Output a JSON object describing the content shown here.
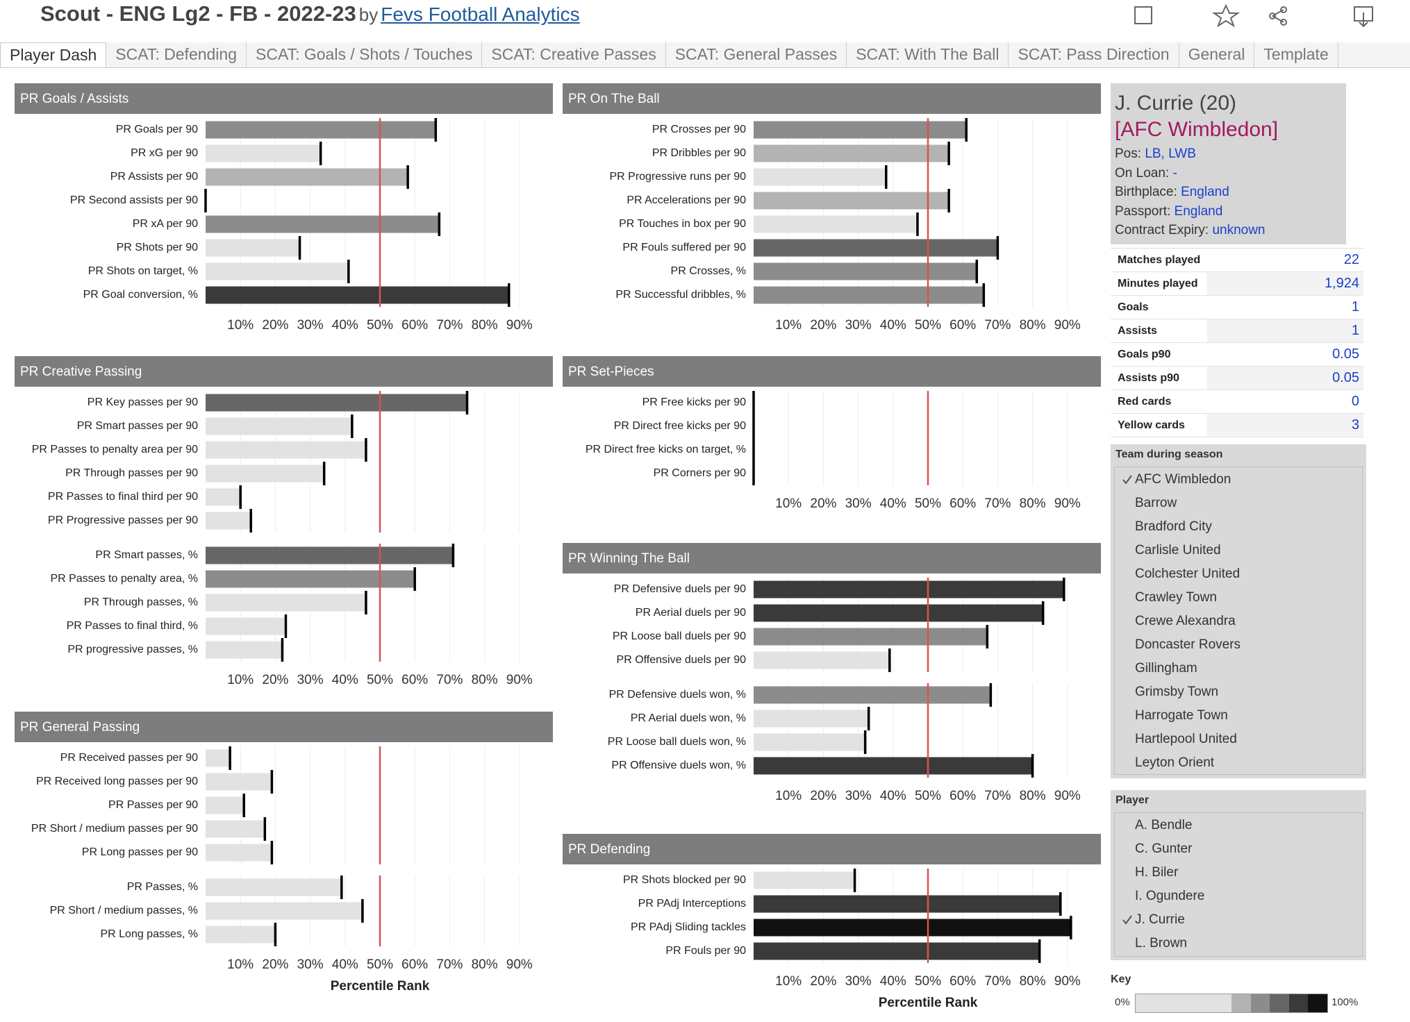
{
  "header": {
    "title": "Scout - ENG Lg2 - FB - 2022-23",
    "by": "by",
    "author": "Fevs Football Analytics"
  },
  "tabs": [
    {
      "label": "Player Dash",
      "active": true
    },
    {
      "label": "SCAT: Defending"
    },
    {
      "label": "SCAT: Goals / Shots / Touches"
    },
    {
      "label": "SCAT: Creative Passes"
    },
    {
      "label": "SCAT: General Passes"
    },
    {
      "label": "SCAT: With The Ball"
    },
    {
      "label": "SCAT: Pass Direction"
    },
    {
      "label": "General"
    },
    {
      "label": "Template"
    }
  ],
  "chart_data": [
    {
      "type": "bar",
      "title": "PR Goals / Assists",
      "xlim": [
        0,
        100
      ],
      "reference_line": 50,
      "xticks": [
        {
          "value": 10,
          "label": "10%"
        },
        {
          "value": 20,
          "label": "20%"
        },
        {
          "value": 30,
          "label": "30%"
        },
        {
          "value": 40,
          "label": "40%"
        },
        {
          "value": 50,
          "label": "50%"
        },
        {
          "value": 60,
          "label": "60%"
        },
        {
          "value": 70,
          "label": "70%"
        },
        {
          "value": 80,
          "label": "80%"
        },
        {
          "value": 90,
          "label": "90%"
        }
      ],
      "groups": [
        {
          "categories": [
            "PR Goals per 90",
            "PR xG per 90",
            "PR Assists per 90",
            "PR Second assists per 90",
            "PR xA per 90",
            "PR Shots per 90",
            "PR Shots on target, %",
            "PR Goal conversion, %"
          ],
          "values": [
            66,
            33,
            58,
            0,
            67,
            27,
            41,
            87
          ]
        }
      ]
    },
    {
      "type": "bar",
      "title": "PR Creative Passing",
      "xlim": [
        0,
        100
      ],
      "reference_line": 50,
      "xticks": [
        {
          "value": 10,
          "label": "10%"
        },
        {
          "value": 20,
          "label": "20%"
        },
        {
          "value": 30,
          "label": "30%"
        },
        {
          "value": 40,
          "label": "40%"
        },
        {
          "value": 50,
          "label": "50%"
        },
        {
          "value": 60,
          "label": "60%"
        },
        {
          "value": 70,
          "label": "70%"
        },
        {
          "value": 80,
          "label": "80%"
        },
        {
          "value": 90,
          "label": "90%"
        }
      ],
      "groups": [
        {
          "categories": [
            "PR Key passes per 90",
            "PR Smart passes per 90",
            "PR Passes to penalty area per 90",
            "PR Through passes per 90",
            "PR Passes to final third per 90",
            "PR Progressive passes per 90"
          ],
          "values": [
            75,
            42,
            46,
            34,
            10,
            13
          ]
        },
        {
          "categories": [
            "PR Smart passes, %",
            "PR Passes to penalty area, %",
            "PR Through passes, %",
            "PR Passes to final third, %",
            "PR progressive passes, %"
          ],
          "values": [
            71,
            60,
            46,
            23,
            22
          ]
        }
      ]
    },
    {
      "type": "bar",
      "title": "PR General Passing",
      "xlabel": "Percentile Rank",
      "xlim": [
        0,
        100
      ],
      "reference_line": 50,
      "xticks": [
        {
          "value": 10,
          "label": "10%"
        },
        {
          "value": 20,
          "label": "20%"
        },
        {
          "value": 30,
          "label": "30%"
        },
        {
          "value": 40,
          "label": "40%"
        },
        {
          "value": 50,
          "label": "50%"
        },
        {
          "value": 60,
          "label": "60%"
        },
        {
          "value": 70,
          "label": "70%"
        },
        {
          "value": 80,
          "label": "80%"
        },
        {
          "value": 90,
          "label": "90%"
        }
      ],
      "groups": [
        {
          "categories": [
            "PR Received passes per 90",
            "PR Received long passes per 90",
            "PR Passes per 90",
            "PR Short / medium passes per 90",
            "PR Long passes per 90"
          ],
          "values": [
            7,
            19,
            11,
            17,
            19
          ]
        },
        {
          "categories": [
            "PR Passes, %",
            "PR Short / medium passes, %",
            "PR Long passes, %"
          ],
          "values": [
            39,
            45,
            20
          ]
        }
      ]
    },
    {
      "type": "bar",
      "title": "PR On The Ball",
      "xlim": [
        0,
        100
      ],
      "reference_line": 50,
      "xticks": [
        {
          "value": 10,
          "label": "10%"
        },
        {
          "value": 20,
          "label": "20%"
        },
        {
          "value": 30,
          "label": "30%"
        },
        {
          "value": 40,
          "label": "40%"
        },
        {
          "value": 50,
          "label": "50%"
        },
        {
          "value": 60,
          "label": "60%"
        },
        {
          "value": 70,
          "label": "70%"
        },
        {
          "value": 80,
          "label": "80%"
        },
        {
          "value": 90,
          "label": "90%"
        }
      ],
      "groups": [
        {
          "categories": [
            "PR Crosses per 90",
            "PR Dribbles per 90",
            "PR Progressive runs per 90",
            "PR Accelerations per 90",
            "PR Touches in box per 90",
            "PR Fouls suffered per 90",
            "PR Crosses, %",
            "PR Successful dribbles, %"
          ],
          "values": [
            61,
            56,
            38,
            56,
            47,
            70,
            64,
            66
          ]
        }
      ]
    },
    {
      "type": "bar",
      "title": "PR Set-Pieces",
      "xlim": [
        0,
        100
      ],
      "reference_line": 50,
      "xticks": [
        {
          "value": 10,
          "label": "10%"
        },
        {
          "value": 20,
          "label": "20%"
        },
        {
          "value": 30,
          "label": "30%"
        },
        {
          "value": 40,
          "label": "40%"
        },
        {
          "value": 50,
          "label": "50%"
        },
        {
          "value": 60,
          "label": "60%"
        },
        {
          "value": 70,
          "label": "70%"
        },
        {
          "value": 80,
          "label": "80%"
        },
        {
          "value": 90,
          "label": "90%"
        }
      ],
      "groups": [
        {
          "categories": [
            "PR Free kicks per 90",
            "PR Direct free kicks per 90",
            "PR Direct free kicks on target, %",
            "PR Corners per 90"
          ],
          "values": [
            0,
            0,
            0,
            0
          ]
        }
      ]
    },
    {
      "type": "bar",
      "title": "PR Winning The Ball",
      "xlim": [
        0,
        100
      ],
      "reference_line": 50,
      "xticks": [
        {
          "value": 10,
          "label": "10%"
        },
        {
          "value": 20,
          "label": "20%"
        },
        {
          "value": 30,
          "label": "30%"
        },
        {
          "value": 40,
          "label": "40%"
        },
        {
          "value": 50,
          "label": "50%"
        },
        {
          "value": 60,
          "label": "60%"
        },
        {
          "value": 70,
          "label": "70%"
        },
        {
          "value": 80,
          "label": "80%"
        },
        {
          "value": 90,
          "label": "90%"
        }
      ],
      "groups": [
        {
          "categories": [
            "PR Defensive duels per 90",
            "PR Aerial duels per 90",
            "PR Loose ball duels per 90",
            "PR Offensive duels per 90"
          ],
          "values": [
            89,
            83,
            67,
            39
          ]
        },
        {
          "categories": [
            "PR Defensive duels won, %",
            "PR Aerial duels won, %",
            "PR Loose ball duels won, %",
            "PR Offensive duels won, %"
          ],
          "values": [
            68,
            33,
            32,
            80
          ]
        }
      ]
    },
    {
      "type": "bar",
      "title": "PR Defending",
      "xlabel": "Percentile Rank",
      "xlim": [
        0,
        100
      ],
      "reference_line": 50,
      "xticks": [
        {
          "value": 10,
          "label": "10%"
        },
        {
          "value": 20,
          "label": "20%"
        },
        {
          "value": 30,
          "label": "30%"
        },
        {
          "value": 40,
          "label": "40%"
        },
        {
          "value": 50,
          "label": "50%"
        },
        {
          "value": 60,
          "label": "60%"
        },
        {
          "value": 70,
          "label": "70%"
        },
        {
          "value": 80,
          "label": "80%"
        },
        {
          "value": 90,
          "label": "90%"
        }
      ],
      "groups": [
        {
          "categories": [
            "PR Shots blocked per 90",
            "PR PAdj Interceptions",
            "PR PAdj Sliding tackles",
            "PR Fouls per 90"
          ],
          "values": [
            29,
            88,
            91,
            82
          ]
        }
      ]
    }
  ],
  "player": {
    "name": "J. Currie (20)",
    "team": "[AFC Wimbledon]",
    "fields": [
      {
        "label": "Pos:",
        "value": "LB, LWB"
      },
      {
        "label": "On Loan:",
        "value": "-"
      },
      {
        "label": "Birthplace:",
        "value": "England"
      },
      {
        "label": "Passport:",
        "value": "England"
      },
      {
        "label": "Contract Expiry:",
        "value": "unknown"
      }
    ]
  },
  "stats": [
    [
      "Matches played",
      "22"
    ],
    [
      "Minutes played",
      "1,924"
    ],
    [
      "Goals",
      "1"
    ],
    [
      "Assists",
      "1"
    ],
    [
      "Goals p90",
      "0.05"
    ],
    [
      "Assists p90",
      "0.05"
    ],
    [
      "Red cards",
      "0"
    ],
    [
      "Yellow cards",
      "3"
    ]
  ],
  "team_filter": {
    "title": "Team during season",
    "items": [
      {
        "label": "AFC Wimbledon",
        "selected": true
      },
      {
        "label": "Barrow"
      },
      {
        "label": "Bradford City"
      },
      {
        "label": "Carlisle United"
      },
      {
        "label": "Colchester United"
      },
      {
        "label": "Crawley Town"
      },
      {
        "label": "Crewe Alexandra"
      },
      {
        "label": "Doncaster Rovers"
      },
      {
        "label": "Gillingham"
      },
      {
        "label": "Grimsby Town"
      },
      {
        "label": "Harrogate Town"
      },
      {
        "label": "Hartlepool United"
      },
      {
        "label": "Leyton Orient"
      }
    ]
  },
  "player_filter": {
    "title": "Player",
    "items": [
      {
        "label": "A. Bendle"
      },
      {
        "label": "C. Gunter"
      },
      {
        "label": "H. Biler"
      },
      {
        "label": "I. Ogundere"
      },
      {
        "label": "J. Currie",
        "selected": true
      },
      {
        "label": "L. Brown"
      }
    ]
  },
  "key": {
    "title": "Key",
    "min_label": "0%",
    "max_label": "100%",
    "colors": [
      "#e2e2e2",
      "#e2e2e2",
      "#e2e2e2",
      "#e2e2e2",
      "#e2e2e2",
      "#b3b3b3",
      "#8c8c8c",
      "#666666",
      "#3a3a3a",
      "#111111"
    ]
  }
}
